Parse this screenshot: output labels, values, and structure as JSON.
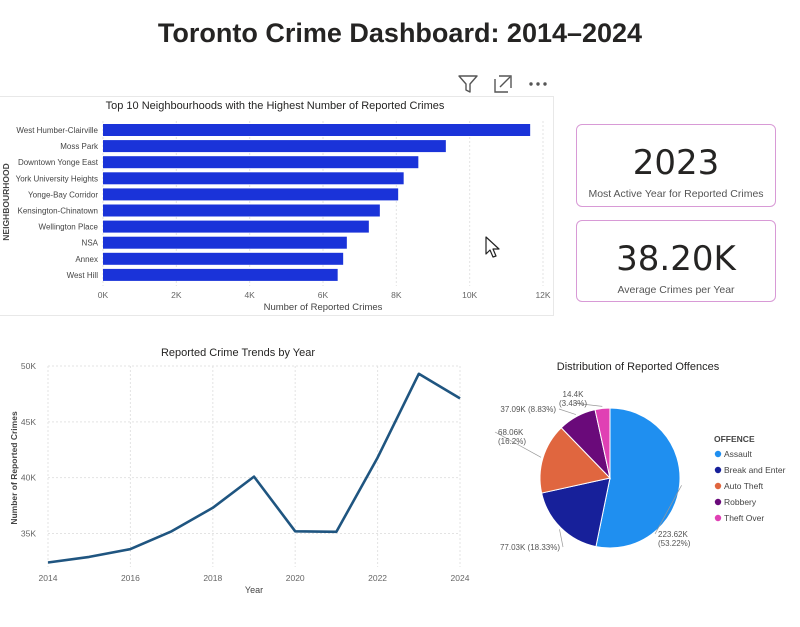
{
  "dashboard": {
    "title": "Toronto Crime Dashboard: 2014–2024"
  },
  "toolbar": {
    "filter_icon": "filter-icon",
    "focus_icon": "focus-mode-icon",
    "more_icon": "more-options-icon"
  },
  "kpis": [
    {
      "value": "2023",
      "label": "Most Active Year for Reported Crimes"
    },
    {
      "value": "38.20K",
      "label": "Average Crimes per Year"
    }
  ],
  "colors": {
    "bar": "#1a33d9",
    "line": "#1f5580",
    "grid": "#e3e3e3",
    "offence": [
      "#1f8ff0",
      "#17209a",
      "#e0663f",
      "#6a0a7a",
      "#e040b4"
    ]
  },
  "chart_data": [
    {
      "type": "bar",
      "orientation": "horizontal",
      "title": "Top 10 Neighbourhoods with the Highest Number of Reported Crimes",
      "xlabel": "Number of Reported Crimes",
      "ylabel": "NEIGHBOURHOOD",
      "categories": [
        "West Humber-Clairville",
        "Moss Park",
        "Downtown Yonge East",
        "York University Heights",
        "Yonge-Bay Corridor",
        "Kensington-Chinatown",
        "Wellington Place",
        "NSA",
        "Annex",
        "West Hill"
      ],
      "values": [
        11650,
        9350,
        8600,
        8200,
        8050,
        7550,
        7250,
        6650,
        6550,
        6400
      ],
      "xlim": [
        0,
        12000
      ],
      "xticks": [
        0,
        2000,
        4000,
        6000,
        8000,
        10000,
        12000
      ],
      "xtick_labels": [
        "0K",
        "2K",
        "4K",
        "6K",
        "8K",
        "10K",
        "12K"
      ],
      "grid": true
    },
    {
      "type": "line",
      "title": "Reported Crime Trends by Year",
      "xlabel": "Year",
      "ylabel": "Number of Reported Crimes",
      "x": [
        2014,
        2015,
        2016,
        2017,
        2018,
        2019,
        2020,
        2021,
        2022,
        2023,
        2024
      ],
      "y": [
        32400,
        32900,
        33600,
        35200,
        37300,
        40100,
        35200,
        35150,
        41800,
        49300,
        47100
      ],
      "xlim": [
        2014,
        2024
      ],
      "ylim": [
        32000,
        50000
      ],
      "xticks": [
        2014,
        2016,
        2018,
        2020,
        2022,
        2024
      ],
      "yticks": [
        35000,
        40000,
        45000,
        50000
      ],
      "ytick_labels": [
        "35K",
        "40K",
        "45K",
        "50K"
      ],
      "grid": true
    },
    {
      "type": "pie",
      "title": "Distribution of Reported Offences",
      "legend_title": "OFFENCE",
      "legend_position": "right",
      "categories": [
        "Assault",
        "Break and Enter",
        "Auto Theft",
        "Robbery",
        "Theft Over"
      ],
      "values": [
        223620,
        77030,
        68060,
        37090,
        14400
      ],
      "value_labels": [
        "223.62K",
        "77.03K (18.33%)",
        "68.06K",
        "37.09K (8.83%)",
        "14.4K"
      ],
      "percent_labels": [
        "(53.22%)",
        "",
        "(16.2%)",
        "",
        "(3.43%)"
      ]
    }
  ]
}
